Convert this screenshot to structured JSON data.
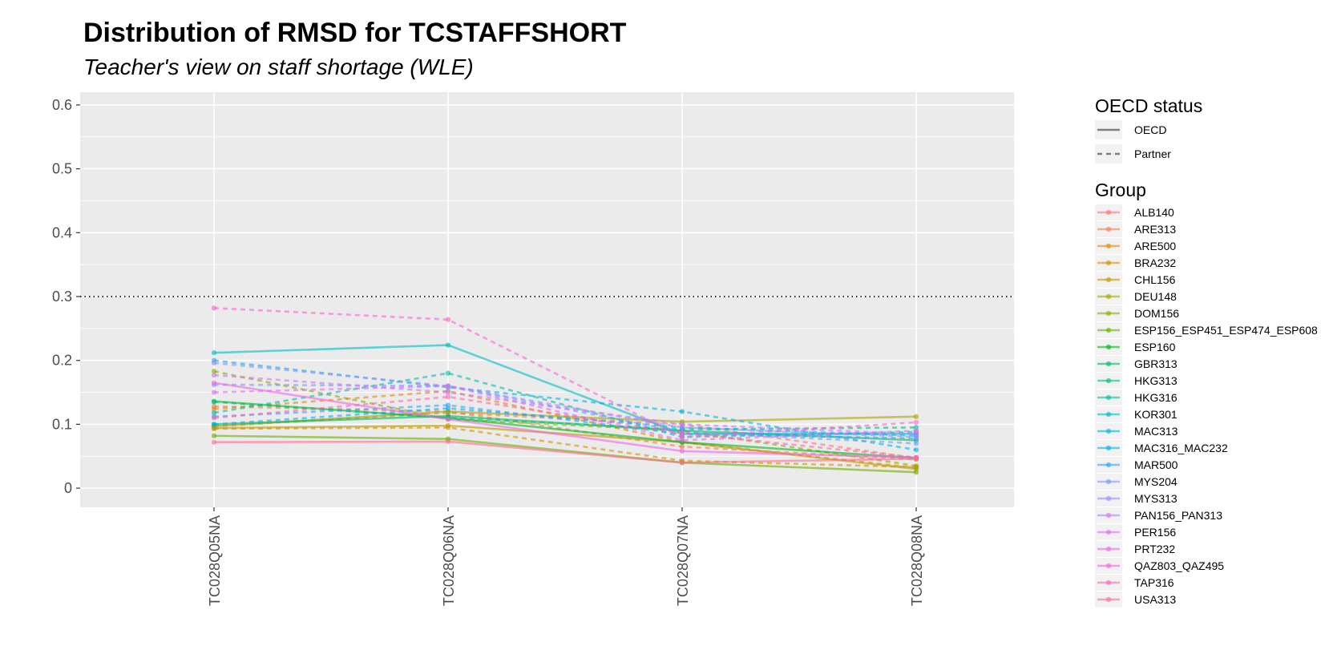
{
  "chart_data": {
    "type": "line",
    "title": "Distribution of RMSD for TCSTAFFSHORT",
    "subtitle": "Teacher's view on staff shortage (WLE)",
    "categories": [
      "TC028Q05NA",
      "TC028Q06NA",
      "TC028Q07NA",
      "TC028Q08NA"
    ],
    "ylim": [
      -0.03,
      0.62
    ],
    "yticks": [
      0,
      0.1,
      0.2,
      0.3,
      0.4,
      0.5,
      0.6
    ],
    "ytick_labels": [
      "0",
      "0.1",
      "0.2",
      "0.3",
      "0.4",
      "0.5",
      "0.6"
    ],
    "threshold": 0.3,
    "grid": true,
    "legend_position": "right",
    "legend_linetype": {
      "title": "OECD status",
      "entries": [
        {
          "label": "OECD",
          "style": "solid"
        },
        {
          "label": "Partner",
          "style": "dashed"
        }
      ]
    },
    "legend_group_title": "Group",
    "series": [
      {
        "name": "ALB140",
        "status": "Partner",
        "color": "#F8766D",
        "values": [
          0.097,
          0.118,
          0.1,
          0.047
        ]
      },
      {
        "name": "ARE313",
        "status": "Partner",
        "color": "#F07F55",
        "values": [
          0.128,
          0.12,
          0.065,
          0.045
        ]
      },
      {
        "name": "ARE500",
        "status": "Partner",
        "color": "#E38900",
        "values": [
          0.124,
          0.152,
          0.072,
          0.032
        ]
      },
      {
        "name": "BRA232",
        "status": "Partner",
        "color": "#D39200",
        "values": [
          0.093,
          0.095,
          0.043,
          0.033
        ]
      },
      {
        "name": "CHL156",
        "status": "OECD",
        "color": "#C09B00",
        "values": [
          0.094,
          0.098,
          0.072,
          0.03
        ]
      },
      {
        "name": "DEU148",
        "status": "OECD",
        "color": "#A9A400",
        "values": [
          0.097,
          0.12,
          0.104,
          0.112
        ]
      },
      {
        "name": "DOM156",
        "status": "Partner",
        "color": "#8EAB00",
        "values": [
          0.183,
          0.108,
          0.09,
          0.035
        ]
      },
      {
        "name": "ESP156_ESP451_ESP474_ESP608",
        "status": "OECD",
        "color": "#6BB100",
        "values": [
          0.082,
          0.077,
          0.04,
          0.025
        ]
      },
      {
        "name": "ESP160",
        "status": "OECD",
        "color": "#00B81F",
        "values": [
          0.136,
          0.11,
          0.072,
          0.047
        ]
      },
      {
        "name": "GBR313",
        "status": "OECD",
        "color": "#00BC59",
        "values": [
          0.1,
          0.113,
          0.09,
          0.075
        ]
      },
      {
        "name": "HKG313",
        "status": "Partner",
        "color": "#00BE82",
        "values": [
          0.135,
          0.11,
          0.092,
          0.095
        ]
      },
      {
        "name": "HKG316",
        "status": "Partner",
        "color": "#00BFA6",
        "values": [
          0.118,
          0.18,
          0.08,
          0.088
        ]
      },
      {
        "name": "KOR301",
        "status": "OECD",
        "color": "#00BDC5",
        "values": [
          0.212,
          0.224,
          0.085,
          0.085
        ]
      },
      {
        "name": "MAC313",
        "status": "Partner",
        "color": "#00B8E0",
        "values": [
          0.2,
          0.158,
          0.12,
          0.06
        ]
      },
      {
        "name": "MAC316_MAC232",
        "status": "Partner",
        "color": "#00B0F6",
        "values": [
          0.1,
          0.125,
          0.095,
          0.082
        ]
      },
      {
        "name": "MAR500",
        "status": "Partner",
        "color": "#35A2FF",
        "values": [
          0.112,
          0.13,
          0.085,
          0.078
        ]
      },
      {
        "name": "MYS204",
        "status": "Partner",
        "color": "#7997FF",
        "values": [
          0.162,
          0.16,
          0.088,
          0.07
        ]
      },
      {
        "name": "MYS313",
        "status": "Partner",
        "color": "#9F8CFF",
        "values": [
          0.196,
          0.16,
          0.095,
          0.08
        ]
      },
      {
        "name": "PAN156_PAN313",
        "status": "Partner",
        "color": "#C77CFF",
        "values": [
          0.177,
          0.15,
          0.1,
          0.085
        ]
      },
      {
        "name": "PER156",
        "status": "Partner",
        "color": "#E16FF4",
        "values": [
          0.15,
          0.16,
          0.075,
          0.09
        ]
      },
      {
        "name": "PRT232",
        "status": "OECD",
        "color": "#F265E4",
        "values": [
          0.165,
          0.108,
          0.058,
          0.048
        ]
      },
      {
        "name": "QAZ803_QAZ495",
        "status": "Partner",
        "color": "#FB61D7",
        "values": [
          0.282,
          0.264,
          0.08,
          0.103
        ]
      },
      {
        "name": "TAP316",
        "status": "Partner",
        "color": "#FF65AE",
        "values": [
          0.11,
          0.143,
          0.086,
          0.048
        ]
      },
      {
        "name": "USA313",
        "status": "OECD",
        "color": "#FF6C91",
        "values": [
          0.072,
          0.073,
          0.04,
          0.046
        ]
      }
    ]
  }
}
